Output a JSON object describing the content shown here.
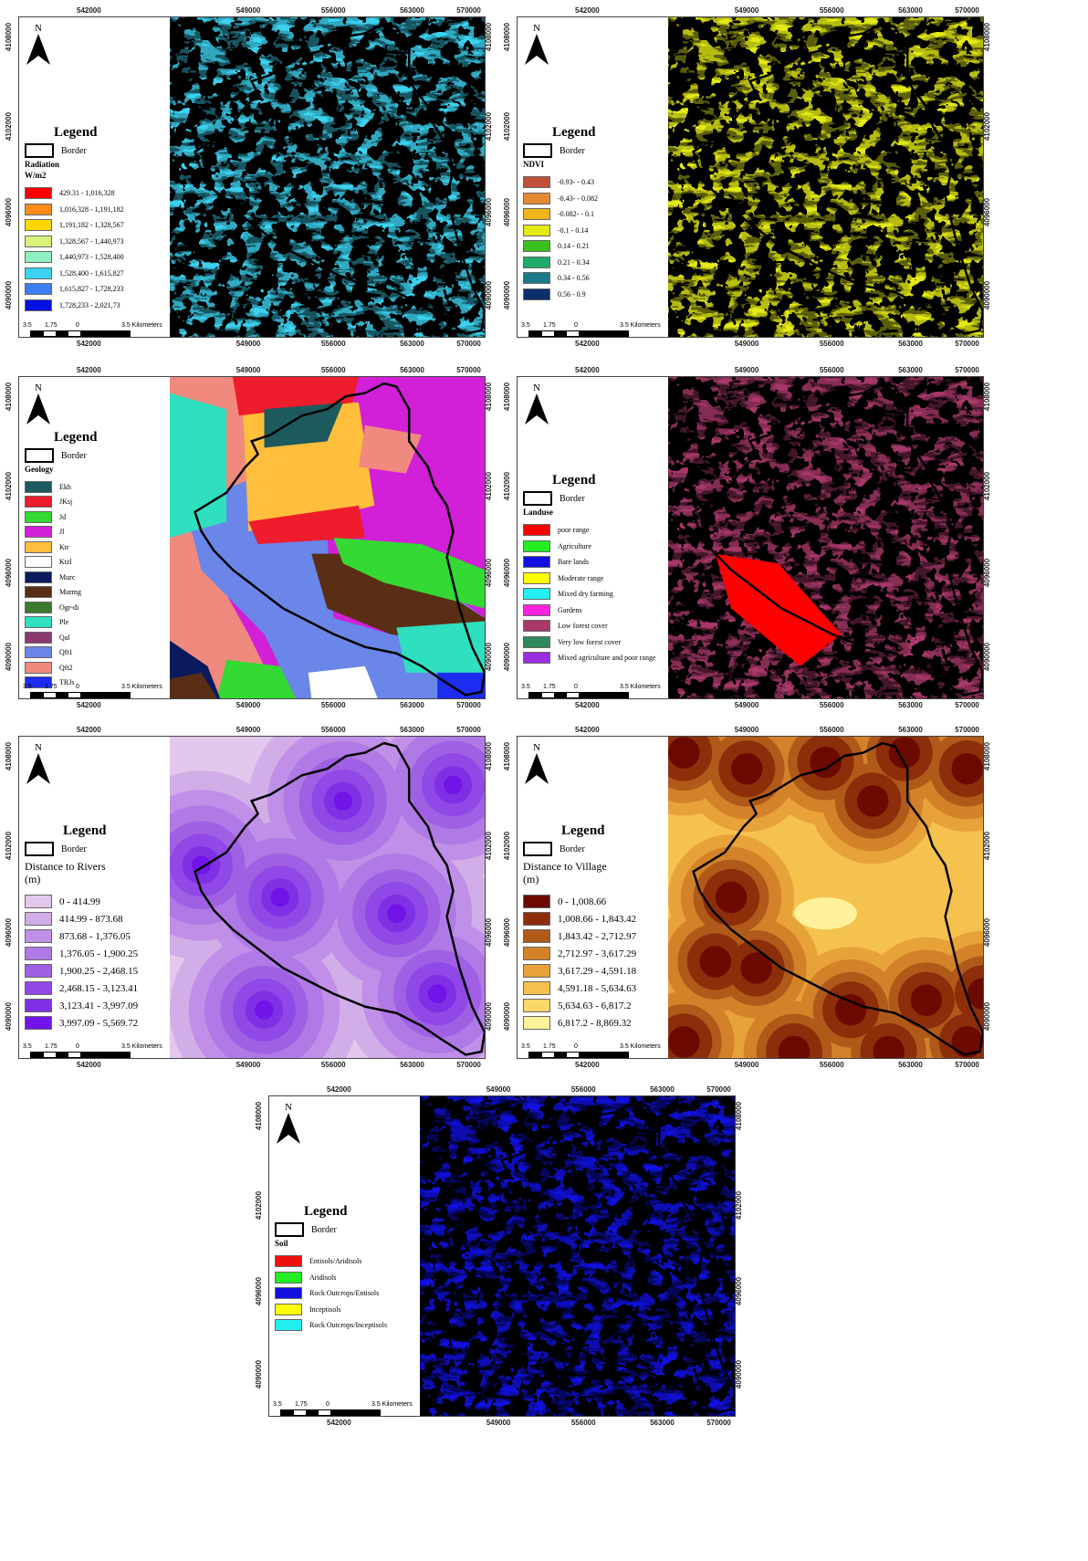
{
  "x_ticks": [
    "542000",
    "549000",
    "556000",
    "563000",
    "570000"
  ],
  "y_ticks": [
    "4108000",
    "4102000",
    "4096000",
    "4090000"
  ],
  "north_label": "N",
  "legend_title": "Legend",
  "border_label": "Border",
  "scale": {
    "labels": [
      "3.5",
      "1.75",
      "0",
      "3.5 Kilometers"
    ]
  },
  "panels": {
    "radiation": {
      "subtitle": "Radiation",
      "subtitle2": "W/m2",
      "classes": [
        {
          "label": "429.31 - 1,016,328",
          "color": "#ff0000"
        },
        {
          "label": "1,016,328 - 1,191,182",
          "color": "#ff8c1a"
        },
        {
          "label": "1,191,182 - 1,328,567",
          "color": "#ffd700"
        },
        {
          "label": "1,328,567 - 1,440,973",
          "color": "#d9f27a"
        },
        {
          "label": "1,440,973 - 1,528,400",
          "color": "#8ff0c0"
        },
        {
          "label": "1,528,400 - 1,615,827",
          "color": "#3cd2f0"
        },
        {
          "label": "1,615,827 - 1,728,233",
          "color": "#3d7ff2"
        },
        {
          "label": "1,728,233 - 2,021,73",
          "color": "#0010e0"
        }
      ]
    },
    "ndvi": {
      "subtitle": "NDVI",
      "classes": [
        {
          "label": "-0.93- - 0.43",
          "color": "#c0503a"
        },
        {
          "label": "-0.43- - 0.082",
          "color": "#e58a33"
        },
        {
          "label": "-0.082- - 0.1",
          "color": "#f0b51c"
        },
        {
          "label": "-0.1 - 0.14",
          "color": "#e4ea14"
        },
        {
          "label": "0.14 - 0.21",
          "color": "#39c11f"
        },
        {
          "label": "0.21 - 0.34",
          "color": "#1faa6a"
        },
        {
          "label": "0.34 - 0.56",
          "color": "#1a7a8a"
        },
        {
          "label": "0.56 - 0.9",
          "color": "#0c2f6b"
        }
      ]
    },
    "geology": {
      "subtitle": "Geology",
      "classes": [
        {
          "label": "Ekh",
          "color": "#1c5a5e"
        },
        {
          "label": "JKsj",
          "color": "#ee1c2c"
        },
        {
          "label": "Jd",
          "color": "#34d934"
        },
        {
          "label": "Jl",
          "color": "#d21fd8"
        },
        {
          "label": "Ktr",
          "color": "#ffbe3c"
        },
        {
          "label": "Ktzl",
          "color": "#ffffff"
        },
        {
          "label": "Murc",
          "color": "#0a1a5c"
        },
        {
          "label": "Murmg",
          "color": "#5a2e14"
        },
        {
          "label": "Ogr-di",
          "color": "#3d7a30"
        },
        {
          "label": "Ple",
          "color": "#2ee0c0"
        },
        {
          "label": "Qal",
          "color": "#8c3a6e"
        },
        {
          "label": "Qft1",
          "color": "#6a86e8"
        },
        {
          "label": "Qft2",
          "color": "#f08a7e"
        },
        {
          "label": "TRJs",
          "color": "#1c2cf0"
        }
      ]
    },
    "landuse": {
      "subtitle": "Landuse",
      "classes": [
        {
          "label": "poor range",
          "color": "#ff0000"
        },
        {
          "label": "Agriculture",
          "color": "#22ee22"
        },
        {
          "label": "Bare lands",
          "color": "#1010e0"
        },
        {
          "label": "Moderate range",
          "color": "#ffff00"
        },
        {
          "label": "Mixed dry farming",
          "color": "#22f0f0"
        },
        {
          "label": "Gardens",
          "color": "#ff22e0"
        },
        {
          "label": "Low forest cover",
          "color": "#a8386a"
        },
        {
          "label": "Very low forest cover",
          "color": "#2e8a5a"
        },
        {
          "label": "Mixed agriculture and poor range",
          "color": "#9a2ee0"
        }
      ]
    },
    "rivers": {
      "subtitle": "Distance to Rivers",
      "subtitle2": "(m)",
      "classes": [
        {
          "label": "0 - 414.99",
          "color": "#e2c8ec"
        },
        {
          "label": "414.99 - 873.68",
          "color": "#d2aee8"
        },
        {
          "label": "873.68 - 1,376.05",
          "color": "#c090e8"
        },
        {
          "label": "1,376.05 - 1,900.25",
          "color": "#b07ae6"
        },
        {
          "label": "1,900.25 - 2,468.15",
          "color": "#a060e4"
        },
        {
          "label": "2,468.15 - 3,123.41",
          "color": "#9048e6"
        },
        {
          "label": "3,123.41 - 3,997.09",
          "color": "#8030e4"
        },
        {
          "label": "3,997.09 - 5,569.72",
          "color": "#7014e8"
        }
      ]
    },
    "village": {
      "subtitle": "Distance to Village",
      "subtitle2": "(m)",
      "classes": [
        {
          "label": "0 - 1,008.66",
          "color": "#6a0a00"
        },
        {
          "label": "1,008.66 - 1,843.42",
          "color": "#8c2e0a"
        },
        {
          "label": "1,843.42 - 2,712.97",
          "color": "#b05a1a"
        },
        {
          "label": "2,712.97 - 3,617.29",
          "color": "#d4822a"
        },
        {
          "label": "3,617.29 - 4,591.18",
          "color": "#e8a23a"
        },
        {
          "label": "4,591.18 - 5,634.63",
          "color": "#f5c24e"
        },
        {
          "label": "5,634.63 - 6,817.2",
          "color": "#fbd76a"
        },
        {
          "label": "6,817.2 - 8,869.32",
          "color": "#fff29a"
        }
      ]
    },
    "soil": {
      "subtitle": "Soil",
      "classes": [
        {
          "label": "Entisols/Aridisols",
          "color": "#ee1010"
        },
        {
          "label": "Aridisols",
          "color": "#22ee22"
        },
        {
          "label": "Rock Outcrops/Entisols",
          "color": "#1010e0"
        },
        {
          "label": "Inceptisols",
          "color": "#ffff00"
        },
        {
          "label": "Rock Outcrops/Inceptisols",
          "color": "#22f0f0"
        }
      ]
    }
  }
}
